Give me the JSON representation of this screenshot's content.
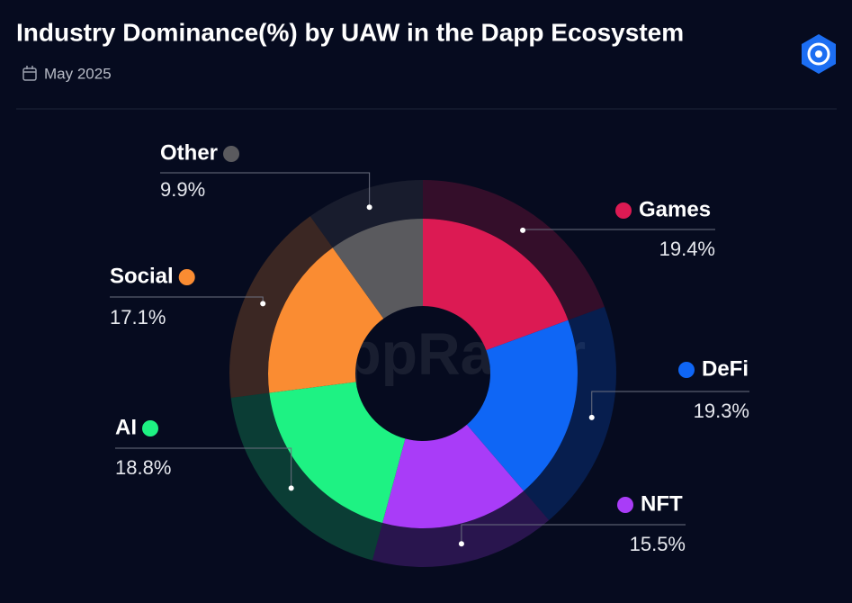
{
  "chart_data": {
    "type": "donut",
    "title": "Industry Dominance(%) by UAW in the Dapp Ecosystem",
    "subtitle": "May 2025",
    "watermark": "DappRadar",
    "categories": [
      "Games",
      "DeFi",
      "NFT",
      "AI",
      "Social",
      "Other"
    ],
    "values": [
      19.4,
      19.3,
      15.5,
      18.8,
      17.1,
      9.9
    ],
    "value_labels": [
      "19.4%",
      "19.3%",
      "15.5%",
      "18.8%",
      "17.1%",
      "9.9%"
    ],
    "colors": [
      "#dc1a53",
      "#0f66f5",
      "#a93cf8",
      "#1ef283",
      "#fa8c32",
      "#5a5a5e"
    ]
  }
}
